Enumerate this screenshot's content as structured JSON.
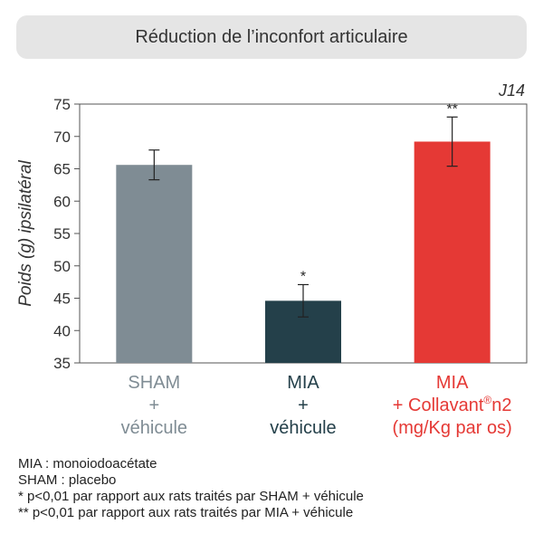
{
  "header": {
    "title": "Réduction de l’inconfort articulaire"
  },
  "chart_data": {
    "type": "bar",
    "corner_label": "J14",
    "ylabel": "Poids (g) ipsilatéral",
    "xlabel": "",
    "ylim": [
      35,
      75
    ],
    "yticks": [
      35,
      40,
      45,
      50,
      55,
      60,
      65,
      70,
      75
    ],
    "grid": false,
    "categories": [
      {
        "lines": [
          "SHAM",
          "+",
          "véhicule"
        ],
        "color": "#7f8c94"
      },
      {
        "lines": [
          "MIA",
          "+",
          "véhicule"
        ],
        "color": "#24404a"
      },
      {
        "lines": [
          "MIA",
          "+ Collavant",
          "(mg/Kg par os)"
        ],
        "sup": "®",
        "after_sup": "n2",
        "color": "#e53935"
      }
    ],
    "values": [
      65.6,
      44.6,
      69.2
    ],
    "errors": [
      2.3,
      2.5,
      3.8
    ],
    "significance": [
      "",
      "*",
      "**"
    ],
    "bar_colors": [
      "#7f8c94",
      "#24404a",
      "#e53935"
    ]
  },
  "footnotes": [
    "MIA : monoiodoacétate",
    "SHAM : placebo",
    "* p<0,01  par rapport aux rats traités par SHAM + véhicule",
    "** p<0,01  par rapport aux rats traités par MIA  + véhicule"
  ]
}
